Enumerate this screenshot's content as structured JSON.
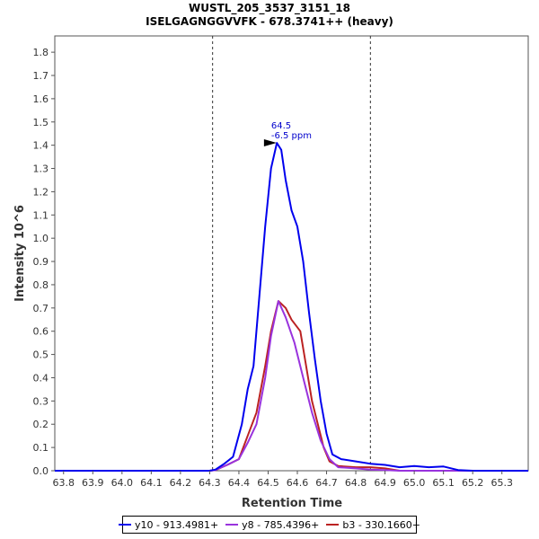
{
  "chart_data": {
    "type": "line",
    "title": "WUSTL_205_3537_3151_18",
    "subtitle": "ISELGAGNGGVVFK - 678.3741++ (heavy)",
    "xlabel": "Retention Time",
    "ylabel": "Intensity 10^6",
    "xlim": [
      63.77,
      65.39
    ],
    "ylim": [
      0,
      1.87
    ],
    "x_ticks": [
      "63.8",
      "63.9",
      "64.0",
      "64.1",
      "64.2",
      "64.3",
      "64.4",
      "64.5",
      "64.6",
      "64.7",
      "64.8",
      "64.9",
      "65.0",
      "65.1",
      "65.2",
      "65.3"
    ],
    "x_tick_values": [
      63.8,
      63.9,
      64.0,
      64.1,
      64.2,
      64.3,
      64.4,
      64.5,
      64.6,
      64.7,
      64.8,
      64.9,
      65.0,
      65.1,
      65.2,
      65.3
    ],
    "y_ticks": [
      "0.0",
      "0.1",
      "0.2",
      "0.3",
      "0.4",
      "0.5",
      "0.6",
      "0.7",
      "0.8",
      "0.9",
      "1.0",
      "1.1",
      "1.2",
      "1.3",
      "1.4",
      "1.5",
      "1.6",
      "1.7",
      "1.8"
    ],
    "y_tick_values": [
      0,
      0.1,
      0.2,
      0.3,
      0.4,
      0.5,
      0.6,
      0.7,
      0.8,
      0.9,
      1.0,
      1.1,
      1.2,
      1.3,
      1.4,
      1.5,
      1.6,
      1.7,
      1.8
    ],
    "vlines": [
      64.31,
      64.85
    ],
    "annotation": {
      "x": 64.535,
      "y": 1.41,
      "line1": "64.5",
      "line2": "-6.5 ppm"
    },
    "legend_position": "bottom",
    "series": [
      {
        "name": "y10 - 913.4981+",
        "color": "#0000ee",
        "x": [
          63.77,
          64.0,
          64.2,
          64.3,
          64.32,
          64.35,
          64.38,
          64.41,
          64.43,
          64.45,
          64.47,
          64.49,
          64.51,
          64.53,
          64.545,
          64.56,
          64.58,
          64.6,
          64.62,
          64.64,
          64.66,
          64.68,
          64.7,
          64.72,
          64.75,
          64.8,
          64.85,
          64.9,
          64.95,
          65.0,
          65.05,
          65.1,
          65.15,
          65.2,
          65.3,
          65.39
        ],
        "values": [
          0,
          0,
          0,
          0,
          0.005,
          0.03,
          0.06,
          0.2,
          0.35,
          0.45,
          0.75,
          1.05,
          1.3,
          1.41,
          1.38,
          1.25,
          1.12,
          1.05,
          0.9,
          0.68,
          0.48,
          0.3,
          0.16,
          0.07,
          0.05,
          0.04,
          0.03,
          0.025,
          0.015,
          0.02,
          0.015,
          0.018,
          0.003,
          0,
          0,
          0
        ]
      },
      {
        "name": "y8 - 785.4396+",
        "color": "#9933dd",
        "x": [
          63.77,
          64.3,
          64.32,
          64.36,
          64.4,
          64.43,
          64.46,
          64.49,
          64.51,
          64.535,
          64.56,
          64.59,
          64.62,
          64.65,
          64.68,
          64.71,
          64.74,
          64.8,
          64.85,
          64.9,
          64.95,
          65.39
        ],
        "values": [
          0,
          0,
          0.003,
          0.025,
          0.05,
          0.12,
          0.2,
          0.4,
          0.58,
          0.73,
          0.66,
          0.55,
          0.4,
          0.25,
          0.13,
          0.05,
          0.015,
          0.01,
          0.005,
          0.003,
          0,
          0
        ]
      },
      {
        "name": "b3 - 330.1660+",
        "color": "#bb2222",
        "x": [
          63.77,
          64.3,
          64.32,
          64.36,
          64.4,
          64.43,
          64.46,
          64.49,
          64.51,
          64.535,
          64.56,
          64.58,
          64.61,
          64.63,
          64.65,
          64.67,
          64.69,
          64.71,
          64.74,
          64.8,
          64.85,
          64.9,
          64.95,
          65.39
        ],
        "values": [
          0,
          0,
          0.003,
          0.025,
          0.05,
          0.15,
          0.25,
          0.45,
          0.6,
          0.73,
          0.7,
          0.65,
          0.6,
          0.45,
          0.3,
          0.2,
          0.1,
          0.04,
          0.02,
          0.015,
          0.015,
          0.01,
          0,
          0
        ]
      }
    ]
  }
}
